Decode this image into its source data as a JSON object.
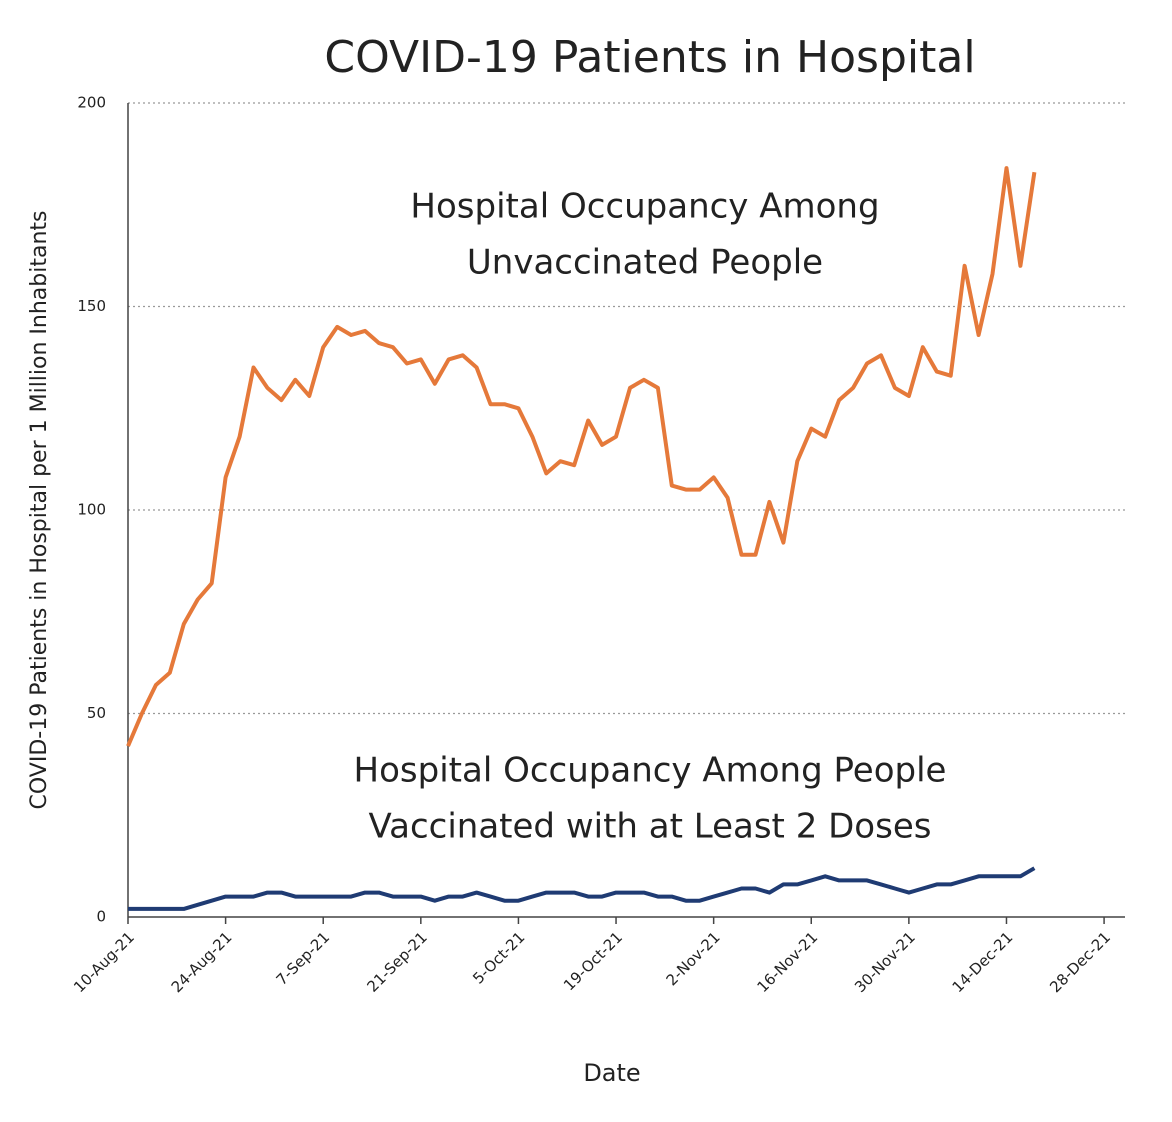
{
  "chart_data": {
    "type": "line",
    "title": "COVID-19 Patients in Hospital",
    "x_label": "Date",
    "y_label": "COVID-19 Patients in Hospital per 1 Million Inhabitants",
    "x": [
      "10-Aug-21",
      "12-Aug-21",
      "14-Aug-21",
      "16-Aug-21",
      "18-Aug-21",
      "20-Aug-21",
      "22-Aug-21",
      "24-Aug-21",
      "26-Aug-21",
      "28-Aug-21",
      "30-Aug-21",
      "1-Sep-21",
      "3-Sep-21",
      "5-Sep-21",
      "7-Sep-21",
      "9-Sep-21",
      "11-Sep-21",
      "13-Sep-21",
      "15-Sep-21",
      "17-Sep-21",
      "19-Sep-21",
      "21-Sep-21",
      "23-Sep-21",
      "25-Sep-21",
      "27-Sep-21",
      "29-Sep-21",
      "1-Oct-21",
      "3-Oct-21",
      "5-Oct-21",
      "7-Oct-21",
      "9-Oct-21",
      "11-Oct-21",
      "13-Oct-21",
      "15-Oct-21",
      "17-Oct-21",
      "19-Oct-21",
      "21-Oct-21",
      "23-Oct-21",
      "25-Oct-21",
      "27-Oct-21",
      "29-Oct-21",
      "31-Oct-21",
      "2-Nov-21",
      "4-Nov-21",
      "6-Nov-21",
      "8-Nov-21",
      "10-Nov-21",
      "12-Nov-21",
      "14-Nov-21",
      "16-Nov-21",
      "18-Nov-21",
      "20-Nov-21",
      "22-Nov-21",
      "24-Nov-21",
      "26-Nov-21",
      "28-Nov-21",
      "30-Nov-21",
      "2-Dec-21",
      "4-Dec-21",
      "6-Dec-21",
      "8-Dec-21",
      "10-Dec-21",
      "12-Dec-21",
      "14-Dec-21",
      "16-Dec-21",
      "18-Dec-21"
    ],
    "series": [
      {
        "name": "Unvaccinated",
        "color": "#e5793a",
        "values": [
          42,
          50,
          57,
          60,
          72,
          78,
          82,
          108,
          118,
          135,
          130,
          127,
          132,
          128,
          140,
          145,
          143,
          144,
          141,
          140,
          136,
          137,
          131,
          137,
          138,
          135,
          126,
          126,
          125,
          118,
          109,
          112,
          111,
          122,
          116,
          118,
          130,
          132,
          130,
          106,
          105,
          105,
          108,
          103,
          89,
          89,
          102,
          92,
          112,
          120,
          118,
          127,
          130,
          136,
          138,
          130,
          128,
          140,
          134,
          133,
          160,
          143,
          158,
          184,
          160,
          183
        ]
      },
      {
        "name": "Vaccinated with at Least 2 Doses",
        "color": "#1f3b73",
        "values": [
          2,
          2,
          2,
          2,
          2,
          3,
          4,
          5,
          5,
          5,
          6,
          6,
          5,
          5,
          5,
          5,
          5,
          6,
          6,
          5,
          5,
          5,
          4,
          5,
          5,
          6,
          5,
          4,
          4,
          5,
          6,
          6,
          6,
          5,
          5,
          6,
          6,
          6,
          5,
          5,
          4,
          4,
          5,
          6,
          7,
          7,
          6,
          8,
          8,
          9,
          10,
          9,
          9,
          9,
          8,
          7,
          6,
          7,
          8,
          8,
          9,
          10,
          10,
          10,
          10,
          12
        ]
      }
    ],
    "annotations": [
      {
        "lines": [
          "Hospital Occupancy Among",
          "Unvaccinated People"
        ],
        "series": 0
      },
      {
        "lines": [
          "Hospital Occupancy  Among People",
          "Vaccinated with at Least 2 Doses"
        ],
        "series": 1
      }
    ],
    "xlim": [
      "10-Aug-21",
      "31-Dec-21"
    ],
    "xticks": [
      "10-Aug-21",
      "24-Aug-21",
      "7-Sep-21",
      "21-Sep-21",
      "5-Oct-21",
      "19-Oct-21",
      "2-Nov-21",
      "16-Nov-21",
      "30-Nov-21",
      "14-Dec-21",
      "28-Dec-21"
    ],
    "ylim": [
      0,
      200
    ],
    "yticks": [
      0,
      50,
      100,
      150,
      200
    ],
    "grid": true
  }
}
